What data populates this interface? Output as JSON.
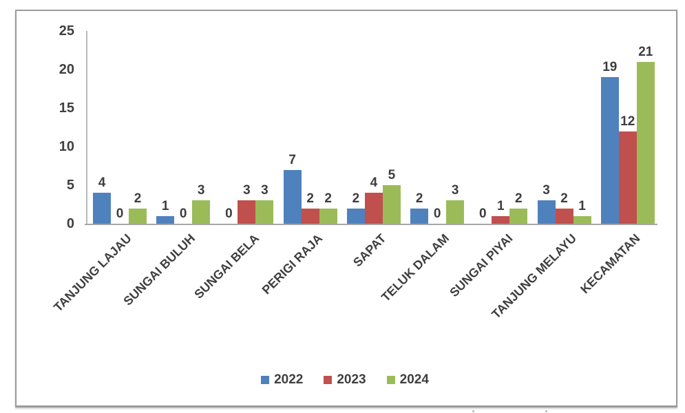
{
  "chart_data": {
    "type": "bar",
    "title": "",
    "xlabel": "",
    "ylabel": "",
    "categories": [
      "TANJUNG LAJAU",
      "SUNGAI BULUH",
      "SUNGAI BELA",
      "PERIGI RAJA",
      "SAPAT",
      "TELUK DALAM",
      "SUNGAI PIYAI",
      "TANJUNG MELAYU",
      "KECAMATAN"
    ],
    "series": [
      {
        "name": "2022",
        "color": "#4f81bd",
        "values": [
          4,
          1,
          0,
          7,
          2,
          2,
          0,
          3,
          19
        ]
      },
      {
        "name": "2023",
        "color": "#c0504d",
        "values": [
          0,
          0,
          3,
          2,
          4,
          0,
          1,
          2,
          12
        ]
      },
      {
        "name": "2024",
        "color": "#9bbb59",
        "values": [
          2,
          3,
          3,
          2,
          5,
          3,
          2,
          1,
          21
        ]
      }
    ],
    "ylim": [
      0,
      25
    ],
    "yticks": [
      0,
      5,
      10,
      15,
      20,
      25
    ],
    "grid": false,
    "data_labels": true,
    "legend_position": "bottom"
  },
  "style": {
    "axis_color": "#b8b8b8",
    "baseline_color": "#a6a6a6",
    "text_color": "#3f3f3f",
    "frame_border_color": "#9b9b9b",
    "background": "#ffffff"
  }
}
